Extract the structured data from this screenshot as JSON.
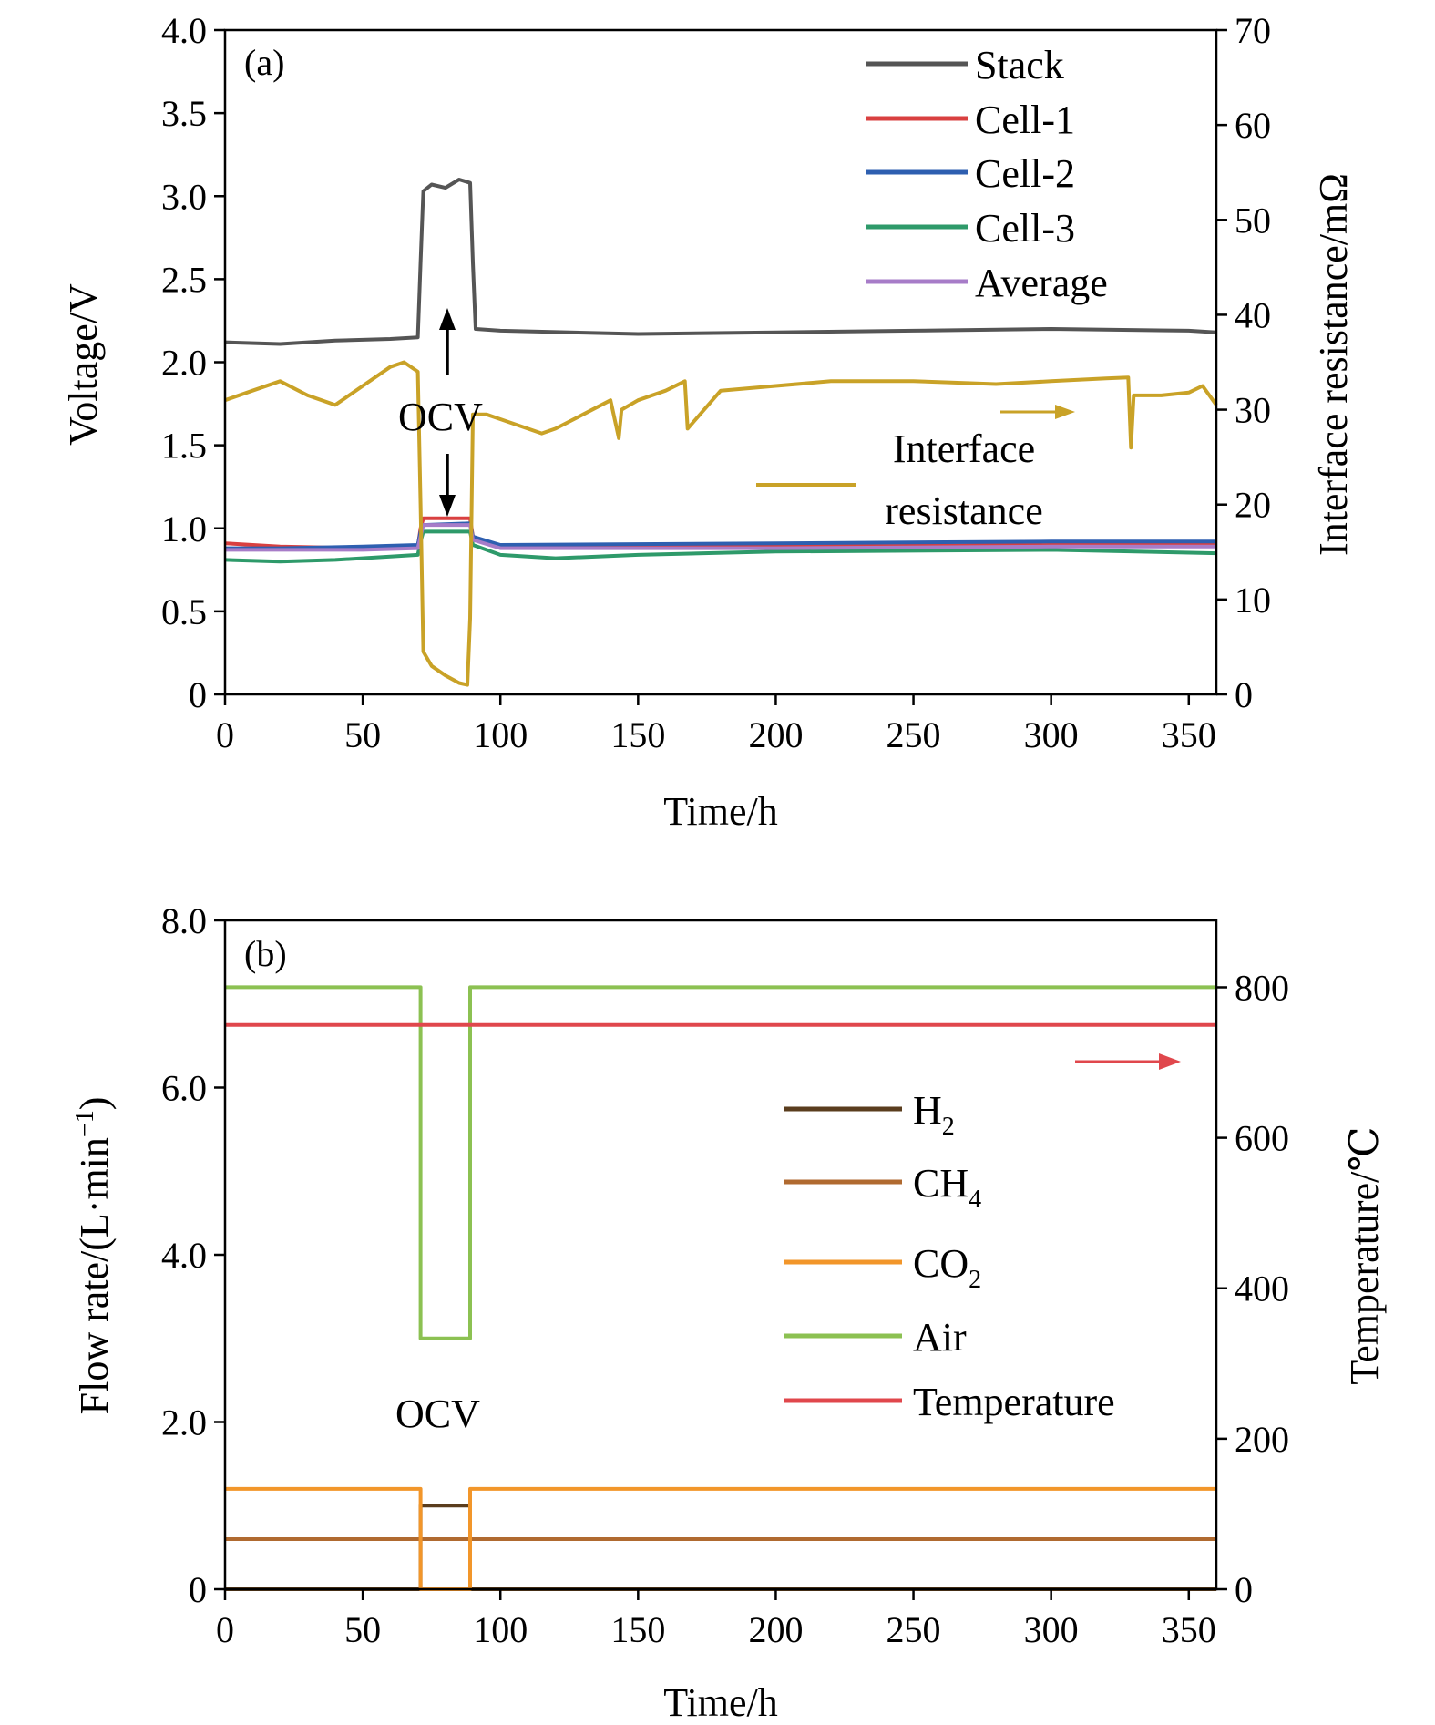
{
  "chart_data": [
    {
      "type": "line",
      "panel_label": "(a)",
      "xlabel": "Time/h",
      "ylabel": "Voltage/V",
      "y2label": "Interface resistance/mΩ",
      "xlim": [
        0,
        360
      ],
      "ylim": [
        0,
        4.0
      ],
      "y2lim": [
        0,
        70
      ],
      "xticks": [
        "0",
        "50",
        "100",
        "150",
        "200",
        "250",
        "300",
        "350"
      ],
      "yticks": [
        "0",
        "0.5",
        "1.0",
        "1.5",
        "2.0",
        "2.5",
        "3.0",
        "3.5",
        "4.0"
      ],
      "y2ticks": [
        "0",
        "10",
        "20",
        "30",
        "40",
        "50",
        "60",
        "70"
      ],
      "legend_position": "top-right",
      "series": [
        {
          "name": "Stack",
          "color": "#555555",
          "axis": "left",
          "x": [
            0,
            20,
            40,
            60,
            70,
            71,
            72,
            75,
            80,
            85,
            89,
            90,
            91,
            100,
            150,
            200,
            250,
            300,
            350,
            360
          ],
          "y": [
            2.12,
            2.11,
            2.13,
            2.14,
            2.15,
            2.6,
            3.03,
            3.07,
            3.05,
            3.1,
            3.08,
            2.6,
            2.2,
            2.19,
            2.17,
            2.18,
            2.19,
            2.2,
            2.19,
            2.18
          ]
        },
        {
          "name": "Cell-1",
          "color": "#d94040",
          "axis": "left",
          "x": [
            0,
            20,
            50,
            70,
            71,
            72,
            89,
            90,
            100,
            200,
            300,
            360
          ],
          "y": [
            0.91,
            0.89,
            0.88,
            0.89,
            1.0,
            1.06,
            1.06,
            0.95,
            0.89,
            0.89,
            0.9,
            0.9
          ]
        },
        {
          "name": "Cell-2",
          "color": "#2e5fb0",
          "axis": "left",
          "x": [
            0,
            20,
            50,
            70,
            71,
            72,
            89,
            90,
            100,
            200,
            300,
            360
          ],
          "y": [
            0.88,
            0.88,
            0.89,
            0.9,
            0.98,
            1.02,
            1.03,
            0.95,
            0.9,
            0.91,
            0.92,
            0.92
          ]
        },
        {
          "name": "Cell-3",
          "color": "#2e9a6a",
          "axis": "left",
          "x": [
            0,
            20,
            40,
            60,
            70,
            71,
            72,
            89,
            90,
            100,
            120,
            150,
            200,
            300,
            360
          ],
          "y": [
            0.81,
            0.8,
            0.81,
            0.83,
            0.84,
            0.92,
            0.98,
            0.98,
            0.9,
            0.84,
            0.82,
            0.84,
            0.86,
            0.87,
            0.85
          ]
        },
        {
          "name": "Average",
          "color": "#a77cc8",
          "axis": "left",
          "x": [
            0,
            50,
            70,
            72,
            89,
            90,
            100,
            200,
            300,
            360
          ],
          "y": [
            0.87,
            0.87,
            0.88,
            1.02,
            1.02,
            0.93,
            0.88,
            0.88,
            0.89,
            0.89
          ]
        },
        {
          "name": "Interface resistance",
          "color": "#c9a227",
          "axis": "right",
          "x": [
            0,
            10,
            20,
            30,
            40,
            50,
            60,
            65,
            70,
            71,
            72,
            75,
            80,
            85,
            88,
            89,
            90,
            95,
            100,
            115,
            120,
            130,
            140,
            143,
            144,
            150,
            160,
            167,
            168,
            180,
            200,
            220,
            250,
            280,
            300,
            320,
            328,
            329,
            330,
            340,
            350,
            355,
            360
          ],
          "y": [
            31,
            32,
            33,
            31.5,
            30.5,
            32.5,
            34.5,
            35,
            34,
            20,
            4.5,
            3,
            2,
            1.2,
            1,
            8,
            29.5,
            29.5,
            29,
            27.5,
            28,
            29.5,
            31,
            27,
            30,
            31,
            32,
            33,
            28,
            32,
            32.5,
            33,
            33,
            32.7,
            33,
            33.3,
            33.4,
            26,
            31.5,
            31.5,
            31.8,
            32.5,
            30.5
          ]
        }
      ],
      "annotations": [
        {
          "text": "OCV"
        },
        {
          "text": "Interface"
        },
        {
          "text": "resistance"
        }
      ]
    },
    {
      "type": "line",
      "panel_label": "(b)",
      "xlabel": "Time/h",
      "ylabel_main": "Flow rate/(L·min",
      "ylabel_sup": "−1",
      "ylabel_close": ")",
      "y2label": "Temperature/℃",
      "xlim": [
        0,
        360
      ],
      "ylim": [
        0,
        8.0
      ],
      "y2lim": [
        0,
        889
      ],
      "xticks": [
        "0",
        "50",
        "100",
        "150",
        "200",
        "250",
        "300",
        "350"
      ],
      "yticks": [
        "0",
        "2.0",
        "4.0",
        "6.0",
        "8.0"
      ],
      "y2ticks": [
        "0",
        "200",
        "400",
        "600",
        "800"
      ],
      "legend_position": "center-right",
      "series": [
        {
          "name": "H",
          "sub": "2",
          "color": "#5a3d1e",
          "axis": "left",
          "x": [
            0,
            71,
            71,
            89,
            89,
            360
          ],
          "y": [
            0,
            0,
            1.0,
            1.0,
            0,
            0
          ]
        },
        {
          "name": "CH",
          "sub": "4",
          "color": "#b06a30",
          "axis": "left",
          "x": [
            0,
            360
          ],
          "y": [
            0.6,
            0.6
          ]
        },
        {
          "name": "CO",
          "sub": "2",
          "color": "#f2962a",
          "axis": "left",
          "x": [
            0,
            71,
            71,
            89,
            89,
            360
          ],
          "y": [
            1.2,
            1.2,
            0,
            0,
            1.2,
            1.2
          ]
        },
        {
          "name": "Air",
          "sub": "",
          "color": "#8cc152",
          "axis": "left",
          "x": [
            0,
            71,
            71,
            89,
            89,
            360
          ],
          "y": [
            7.2,
            7.2,
            3.0,
            3.0,
            7.2,
            7.2
          ]
        },
        {
          "name": "Temperature",
          "sub": "",
          "color": "#e0474c",
          "axis": "right",
          "x": [
            0,
            360
          ],
          "y": [
            750,
            750
          ]
        }
      ],
      "annotations": [
        {
          "text": "OCV"
        }
      ]
    }
  ]
}
